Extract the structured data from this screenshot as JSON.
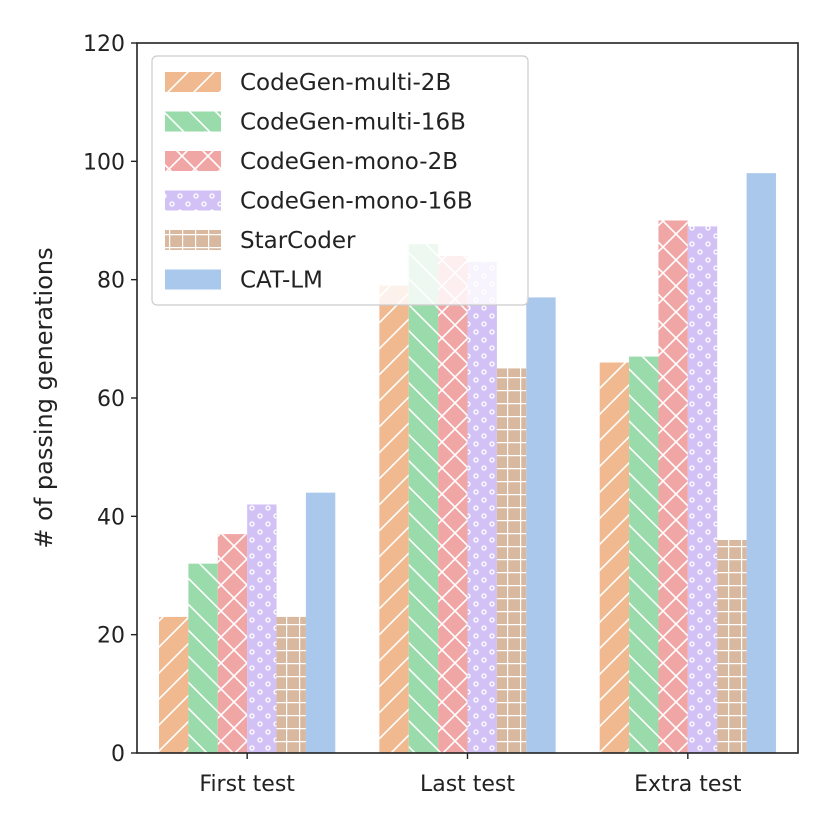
{
  "chart_data": {
    "type": "bar",
    "categories": [
      "First test",
      "Last test",
      "Extra test"
    ],
    "series": [
      {
        "name": "CodeGen-multi-2B",
        "values": [
          23,
          79,
          66
        ],
        "color": "#f0b990",
        "pattern": "diagonal-forward"
      },
      {
        "name": "CodeGen-multi-16B",
        "values": [
          32,
          86,
          67
        ],
        "color": "#99dbaa",
        "pattern": "diagonal-back"
      },
      {
        "name": "CodeGen-mono-2B",
        "values": [
          37,
          84,
          90
        ],
        "color": "#f1a6a6",
        "pattern": "crosshatch"
      },
      {
        "name": "CodeGen-mono-16B",
        "values": [
          42,
          83,
          89
        ],
        "color": "#d2c1f4",
        "pattern": "dots"
      },
      {
        "name": "StarCoder",
        "values": [
          23,
          65,
          36
        ],
        "color": "#d8b9a0",
        "pattern": "grid"
      },
      {
        "name": "CAT-LM",
        "values": [
          44,
          77,
          98
        ],
        "color": "#aac8ec",
        "pattern": "none"
      }
    ],
    "ylabel": "# of passing generations",
    "xlabel": "",
    "ylim": [
      0,
      120
    ],
    "yticks": [
      0,
      20,
      40,
      60,
      80,
      100,
      120
    ],
    "grid": false,
    "legend_position": "top-left"
  }
}
